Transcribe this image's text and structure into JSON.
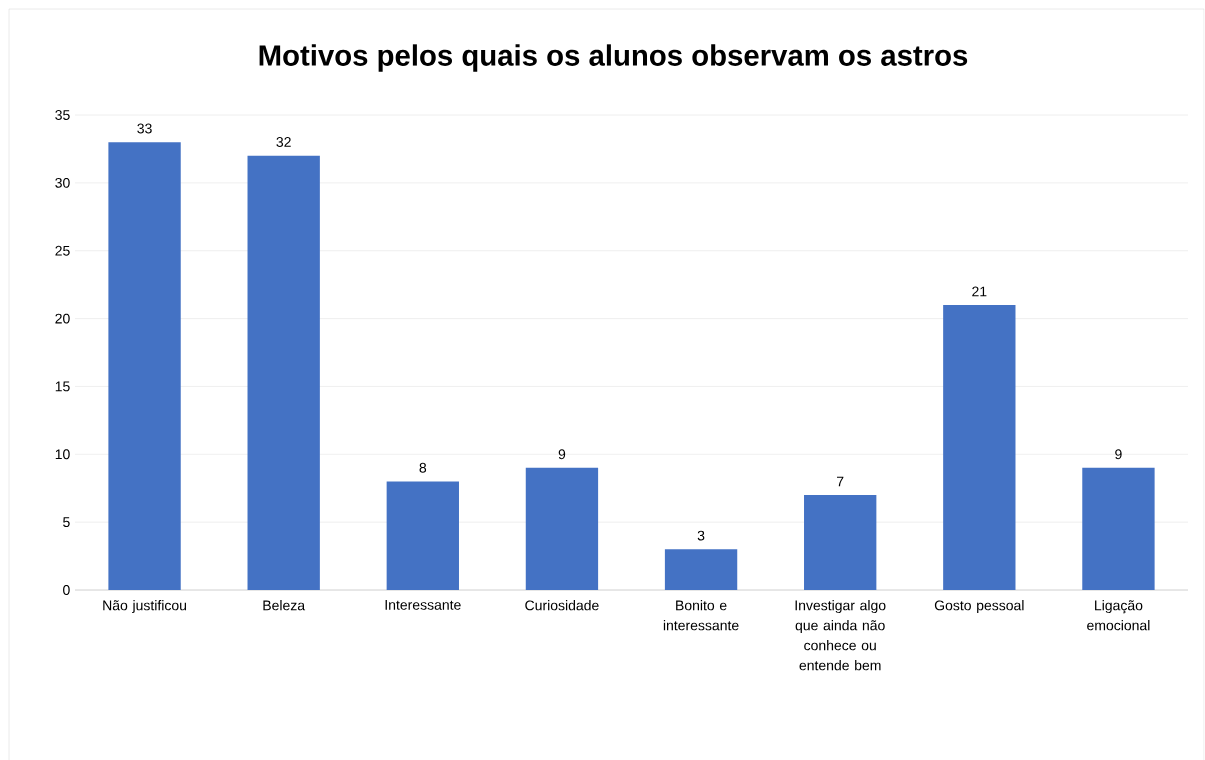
{
  "chart_data": {
    "type": "bar",
    "title": "Motivos pelos quais os alunos observam os astros",
    "categories": [
      "Não justificou",
      "Beleza",
      "Interessante",
      "Curiosidade",
      "Bonito e interessante",
      "Investigar algo que ainda não conhece ou entende bem",
      "Gosto pessoal",
      "Ligação emocional"
    ],
    "values": [
      33,
      32,
      8,
      9,
      3,
      7,
      21,
      9
    ],
    "color": "#4472c4",
    "ylim": [
      0,
      35
    ],
    "yticks": [
      0,
      5,
      10,
      15,
      20,
      25,
      30,
      35
    ],
    "grid": "y",
    "data_labels": true
  }
}
